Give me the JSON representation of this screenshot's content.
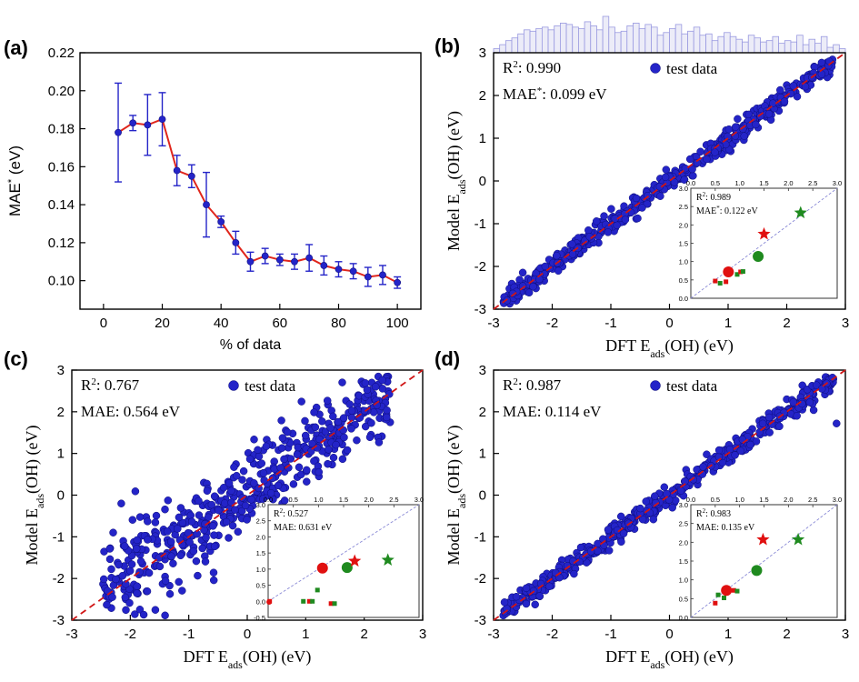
{
  "figure": {
    "panels": [
      {
        "id": "a",
        "label": "(a)"
      },
      {
        "id": "b",
        "label": "(b)"
      },
      {
        "id": "c",
        "label": "(c)"
      },
      {
        "id": "d",
        "label": "(d)"
      }
    ]
  },
  "colors": {
    "axis": "#000000",
    "line_a": "#e0261c",
    "marker_blue": "#2424c8",
    "parity_line": "#d01515",
    "inset_parity": "#8a8ad6",
    "hist": "#9999e0",
    "inset_red": "#e01010",
    "inset_green": "#1f8a1f"
  },
  "chart_data": [
    {
      "id": "a",
      "type": "line",
      "title": "",
      "xlabel": "% of data",
      "ylabel_main": "MAE",
      "ylabel_sup": "*",
      "ylabel_unit": " (eV)",
      "xlim": [
        -8,
        108
      ],
      "ylim": [
        0.085,
        0.22
      ],
      "xticks": [
        0,
        20,
        40,
        60,
        80,
        100
      ],
      "yticks": [
        0.1,
        0.12,
        0.14,
        0.16,
        0.18,
        0.2,
        0.22
      ],
      "ytick_labels": [
        "0.10",
        "0.12",
        "0.14",
        "0.16",
        "0.18",
        "0.20",
        "0.22"
      ],
      "x": [
        5,
        10,
        15,
        20,
        25,
        30,
        35,
        40,
        45,
        50,
        55,
        60,
        65,
        70,
        75,
        80,
        85,
        90,
        95,
        100
      ],
      "y": [
        0.178,
        0.183,
        0.182,
        0.185,
        0.158,
        0.155,
        0.14,
        0.131,
        0.12,
        0.11,
        0.113,
        0.111,
        0.11,
        0.112,
        0.108,
        0.106,
        0.105,
        0.102,
        0.103,
        0.099
      ],
      "err": [
        0.026,
        0.004,
        0.016,
        0.014,
        0.008,
        0.006,
        0.017,
        0.003,
        0.006,
        0.005,
        0.004,
        0.003,
        0.004,
        0.007,
        0.005,
        0.004,
        0.004,
        0.005,
        0.005,
        0.003
      ]
    },
    {
      "id": "b",
      "type": "scatter",
      "xlabel_main": "DFT E",
      "xlabel_sub": "ads",
      "xlabel_rest": "(OH) (eV)",
      "ylabel_main": "Model E",
      "ylabel_sub": "ads",
      "ylabel_rest": "(OH) (eV)",
      "xlim": [
        -3,
        3
      ],
      "ylim": [
        -3,
        3
      ],
      "xticks": [
        -3,
        -2,
        -1,
        0,
        1,
        2,
        3
      ],
      "yticks": [
        -3,
        -2,
        -1,
        0,
        1,
        2,
        3
      ],
      "r2_label": "R",
      "r2_sup": "2",
      "r2_value": ": 0.990",
      "mae_label": "MAE",
      "mae_sup": "*",
      "mae_value": ": 0.099 eV",
      "legend": "test data",
      "spread": 0.12,
      "seed": 17,
      "n_points": 520,
      "outliers": [],
      "has_histogram": true,
      "histogram": [
        3,
        6,
        9,
        11,
        14,
        17,
        16,
        18,
        19,
        17,
        20,
        22,
        21,
        19,
        18,
        23,
        20,
        17,
        27,
        19,
        15,
        16,
        20,
        22,
        18,
        21,
        19,
        13,
        15,
        18,
        21,
        14,
        16,
        19,
        13,
        14,
        9,
        12,
        15,
        12,
        10,
        8,
        13,
        11,
        8,
        9,
        12,
        7,
        9,
        8,
        13,
        6,
        10,
        7,
        12,
        4,
        6,
        3
      ],
      "inset": {
        "r2_label": "R",
        "r2_sup": "2",
        "r2_value": ": 0.989",
        "mae_label": "MAE",
        "mae_sup": "*",
        "mae_value": ": 0.122 eV",
        "xticks": [
          "0.0",
          "0.5",
          "1.0",
          "1.5",
          "2.0",
          "2.5",
          "3.0"
        ],
        "yticks": [
          "0.0",
          "0.5",
          "1.0",
          "1.5",
          "2.0",
          "2.5",
          "3.0"
        ],
        "yrange": [
          0,
          3
        ],
        "points": [
          {
            "x": 0.5,
            "y": 0.47,
            "shape": "square",
            "color": "red",
            "size": "s"
          },
          {
            "x": 0.6,
            "y": 0.41,
            "shape": "square",
            "color": "green",
            "size": "s"
          },
          {
            "x": 0.72,
            "y": 0.45,
            "shape": "square",
            "color": "red",
            "size": "s"
          },
          {
            "x": 0.77,
            "y": 0.72,
            "shape": "circle",
            "color": "red",
            "size": "l"
          },
          {
            "x": 0.95,
            "y": 0.65,
            "shape": "square",
            "color": "green",
            "size": "s"
          },
          {
            "x": 1.02,
            "y": 0.72,
            "shape": "square",
            "color": "red",
            "size": "s"
          },
          {
            "x": 1.07,
            "y": 0.73,
            "shape": "square",
            "color": "green",
            "size": "s"
          },
          {
            "x": 1.38,
            "y": 1.14,
            "shape": "circle",
            "color": "green",
            "size": "l"
          },
          {
            "x": 1.5,
            "y": 1.75,
            "shape": "star",
            "color": "red",
            "size": "l"
          },
          {
            "x": 2.25,
            "y": 2.33,
            "shape": "star",
            "color": "green",
            "size": "l"
          }
        ]
      }
    },
    {
      "id": "c",
      "type": "scatter",
      "xlabel_main": "DFT E",
      "xlabel_sub": "ads",
      "xlabel_rest": "(OH) (eV)",
      "ylabel_main": "Model E",
      "ylabel_sub": "ads",
      "ylabel_rest": "(OH) (eV)",
      "xlim": [
        -3,
        3
      ],
      "ylim": [
        -3,
        3
      ],
      "xticks": [
        -3,
        -2,
        -1,
        0,
        1,
        2,
        3
      ],
      "yticks": [
        -3,
        -2,
        -1,
        0,
        1,
        2,
        3
      ],
      "r2_label": "R",
      "r2_sup": "2",
      "r2_value": ": 0.767",
      "mae_label": "MAE",
      "mae_sup": "",
      "mae_value": ": 0.564 eV",
      "legend": "test data",
      "spread": 0.48,
      "seed": 29,
      "n_points": 520,
      "outliers": [],
      "has_histogram": false,
      "inset": {
        "r2_label": "R",
        "r2_sup": "2",
        "r2_value": ": 0.527",
        "mae_label": "MAE",
        "mae_sup": "",
        "mae_value": ": 0.631 eV",
        "xticks": [
          "0.0",
          "0.5",
          "1.0",
          "1.5",
          "2.0",
          "2.5",
          "3.0"
        ],
        "yticks": [
          "-0.5",
          "0.0",
          "0.5",
          "1.0",
          "1.5",
          "2.0",
          "2.5",
          "3.0"
        ],
        "yrange": [
          -0.5,
          3
        ],
        "points": [
          {
            "x": 0.02,
            "y": -0.02,
            "shape": "circle",
            "color": "red",
            "size": "s"
          },
          {
            "x": 0.03,
            "y": 0.0,
            "shape": "square",
            "color": "red",
            "size": "s"
          },
          {
            "x": 0.7,
            "y": 0.0,
            "shape": "square",
            "color": "green",
            "size": "s"
          },
          {
            "x": 0.82,
            "y": 0.0,
            "shape": "square",
            "color": "red",
            "size": "s"
          },
          {
            "x": 0.88,
            "y": 0.0,
            "shape": "square",
            "color": "green",
            "size": "s"
          },
          {
            "x": 0.98,
            "y": 0.35,
            "shape": "square",
            "color": "green",
            "size": "s"
          },
          {
            "x": 1.25,
            "y": -0.07,
            "shape": "square",
            "color": "red",
            "size": "s"
          },
          {
            "x": 1.32,
            "y": -0.07,
            "shape": "square",
            "color": "green",
            "size": "s"
          },
          {
            "x": 1.08,
            "y": 1.03,
            "shape": "circle",
            "color": "red",
            "size": "l"
          },
          {
            "x": 1.57,
            "y": 1.05,
            "shape": "circle",
            "color": "green",
            "size": "l"
          },
          {
            "x": 1.72,
            "y": 1.25,
            "shape": "star",
            "color": "red",
            "size": "l"
          },
          {
            "x": 2.38,
            "y": 1.28,
            "shape": "star",
            "color": "green",
            "size": "l"
          }
        ]
      }
    },
    {
      "id": "d",
      "type": "scatter",
      "xlabel_main": "DFT E",
      "xlabel_sub": "ads",
      "xlabel_rest": "(OH) (eV)",
      "ylabel_main": "Model E",
      "ylabel_sub": "ads",
      "ylabel_rest": "(OH) (eV)",
      "xlim": [
        -3,
        3
      ],
      "ylim": [
        -3,
        3
      ],
      "xticks": [
        -3,
        -2,
        -1,
        0,
        1,
        2,
        3
      ],
      "yticks": [
        -3,
        -2,
        -1,
        0,
        1,
        2,
        3
      ],
      "r2_label": "R",
      "r2_sup": "2",
      "r2_value": ": 0.987",
      "mae_label": "MAE",
      "mae_sup": "",
      "mae_value": ": 0.114 eV",
      "legend": "test data",
      "spread": 0.13,
      "seed": 41,
      "n_points": 520,
      "outliers": [
        {
          "x": 2.85,
          "y": 1.72
        },
        {
          "x": 2.6,
          "y": 2.55
        },
        {
          "x": 0.05,
          "y": -0.3
        },
        {
          "x": -0.4,
          "y": -0.15
        }
      ],
      "has_histogram": false,
      "inset": {
        "r2_label": "R",
        "r2_sup": "2",
        "r2_value": ": 0.983",
        "mae_label": "MAE",
        "mae_sup": "",
        "mae_value": ": 0.135 eV",
        "xticks": [
          "0.0",
          "0.5",
          "1.0",
          "1.5",
          "2.0",
          "2.5",
          "3.0"
        ],
        "yticks": [
          "0.0",
          "0.5",
          "1.0",
          "1.5",
          "2.0",
          "2.5",
          "3.0"
        ],
        "yrange": [
          0,
          3
        ],
        "points": [
          {
            "x": 0.5,
            "y": 0.38,
            "shape": "square",
            "color": "red",
            "size": "s"
          },
          {
            "x": 0.56,
            "y": 0.6,
            "shape": "square",
            "color": "green",
            "size": "s"
          },
          {
            "x": 0.68,
            "y": 0.52,
            "shape": "square",
            "color": "green",
            "size": "s"
          },
          {
            "x": 0.73,
            "y": 0.72,
            "shape": "circle",
            "color": "red",
            "size": "l"
          },
          {
            "x": 0.88,
            "y": 0.72,
            "shape": "square",
            "color": "red",
            "size": "s"
          },
          {
            "x": 0.95,
            "y": 0.7,
            "shape": "square",
            "color": "green",
            "size": "s"
          },
          {
            "x": 1.35,
            "y": 1.25,
            "shape": "circle",
            "color": "green",
            "size": "l"
          },
          {
            "x": 1.48,
            "y": 2.07,
            "shape": "star",
            "color": "red",
            "size": "l"
          },
          {
            "x": 2.2,
            "y": 2.07,
            "shape": "star",
            "color": "green",
            "size": "l"
          }
        ]
      }
    }
  ]
}
